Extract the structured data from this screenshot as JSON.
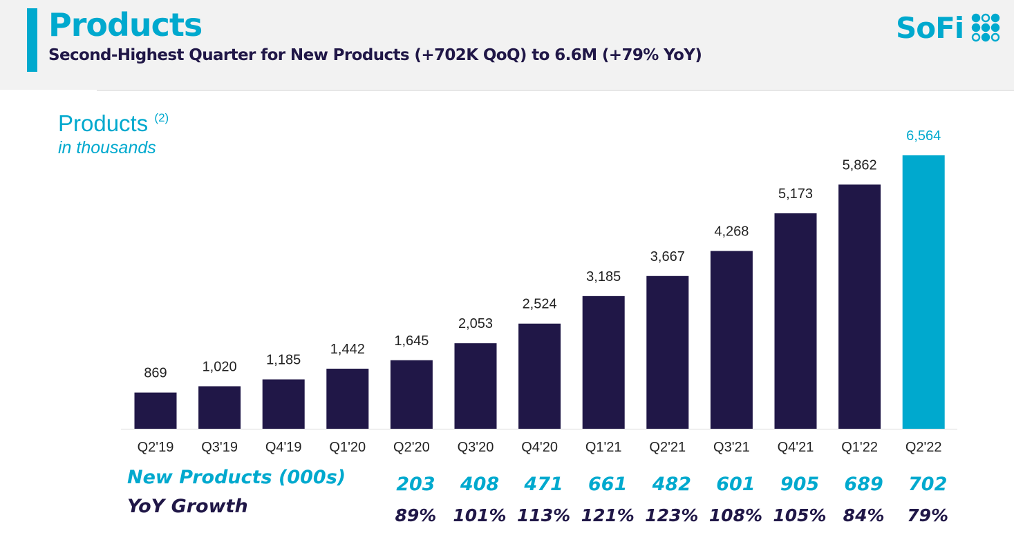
{
  "header": {
    "title": "Products",
    "subtitle": "Second-Highest Quarter for New Products (+702K QoQ) to 6.6M (+79% YoY)",
    "logo_text": "SoFi",
    "logo_icon": "sofi-dots-icon"
  },
  "chart_title": "Products",
  "chart_title_footnote": "(2)",
  "chart_units": "in thousands",
  "colors": {
    "accent": "#00a9ce",
    "navy": "#201747",
    "header_bg": "#f2f2f2"
  },
  "rows": {
    "new_products_label": "New Products (000s)",
    "yoy_label": "YoY Growth"
  },
  "chart_data": {
    "type": "bar",
    "title": "Products",
    "ylabel": "in thousands",
    "categories": [
      "Q2'19",
      "Q3'19",
      "Q4'19",
      "Q1'20",
      "Q2'20",
      "Q3'20",
      "Q4'20",
      "Q1'21",
      "Q2'21",
      "Q3'21",
      "Q4'21",
      "Q1'22",
      "Q2'22"
    ],
    "values": [
      869,
      1020,
      1185,
      1442,
      1645,
      2053,
      2524,
      3185,
      3667,
      4268,
      5173,
      5862,
      6564
    ],
    "value_labels": [
      "869",
      "1,020",
      "1,185",
      "1,442",
      "1,645",
      "2,053",
      "2,524",
      "3,185",
      "3,667",
      "4,268",
      "5,173",
      "5,862",
      "6,564"
    ],
    "highlight_index": 12,
    "new_products": [
      "203",
      "408",
      "471",
      "661",
      "482",
      "601",
      "905",
      "689",
      "702"
    ],
    "new_products_start_index": 4,
    "yoy_growth": [
      "89%",
      "101%",
      "113%",
      "121%",
      "123%",
      "108%",
      "105%",
      "84%",
      "79%"
    ],
    "yoy_start_index": 4,
    "ylim": [
      0,
      6564
    ],
    "grid": false,
    "legend": "none"
  }
}
